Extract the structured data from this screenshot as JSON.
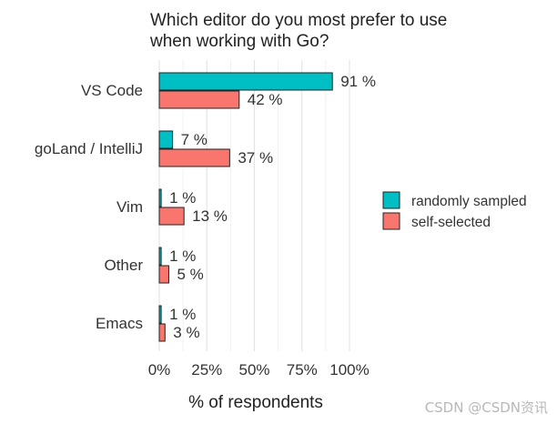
{
  "chart_data": {
    "type": "bar",
    "orientation": "horizontal",
    "title": "Which editor do you most prefer to use when working with Go?",
    "xlabel": "% of respondents",
    "ylabel": "",
    "xlim": [
      0,
      100
    ],
    "x_ticks": [
      "0%",
      "25%",
      "50%",
      "75%",
      "100%"
    ],
    "grid": true,
    "legend_position": "right",
    "categories": [
      "VS Code",
      "goLand / IntelliJ",
      "Vim",
      "Other",
      "Emacs"
    ],
    "series": [
      {
        "name": "randomly sampled",
        "color": "#00BFC4",
        "values": [
          91,
          7,
          1,
          1,
          1
        ],
        "labels": [
          "91 %",
          "7 %",
          "1 %",
          "1 %",
          "1 %"
        ]
      },
      {
        "name": "self-selected",
        "color": "#F8766D",
        "values": [
          42,
          37,
          13,
          5,
          3
        ],
        "labels": [
          "42 %",
          "37 %",
          "13 %",
          "5 %",
          "3 %"
        ]
      }
    ]
  },
  "watermark": "CSDN @CSDN资讯"
}
